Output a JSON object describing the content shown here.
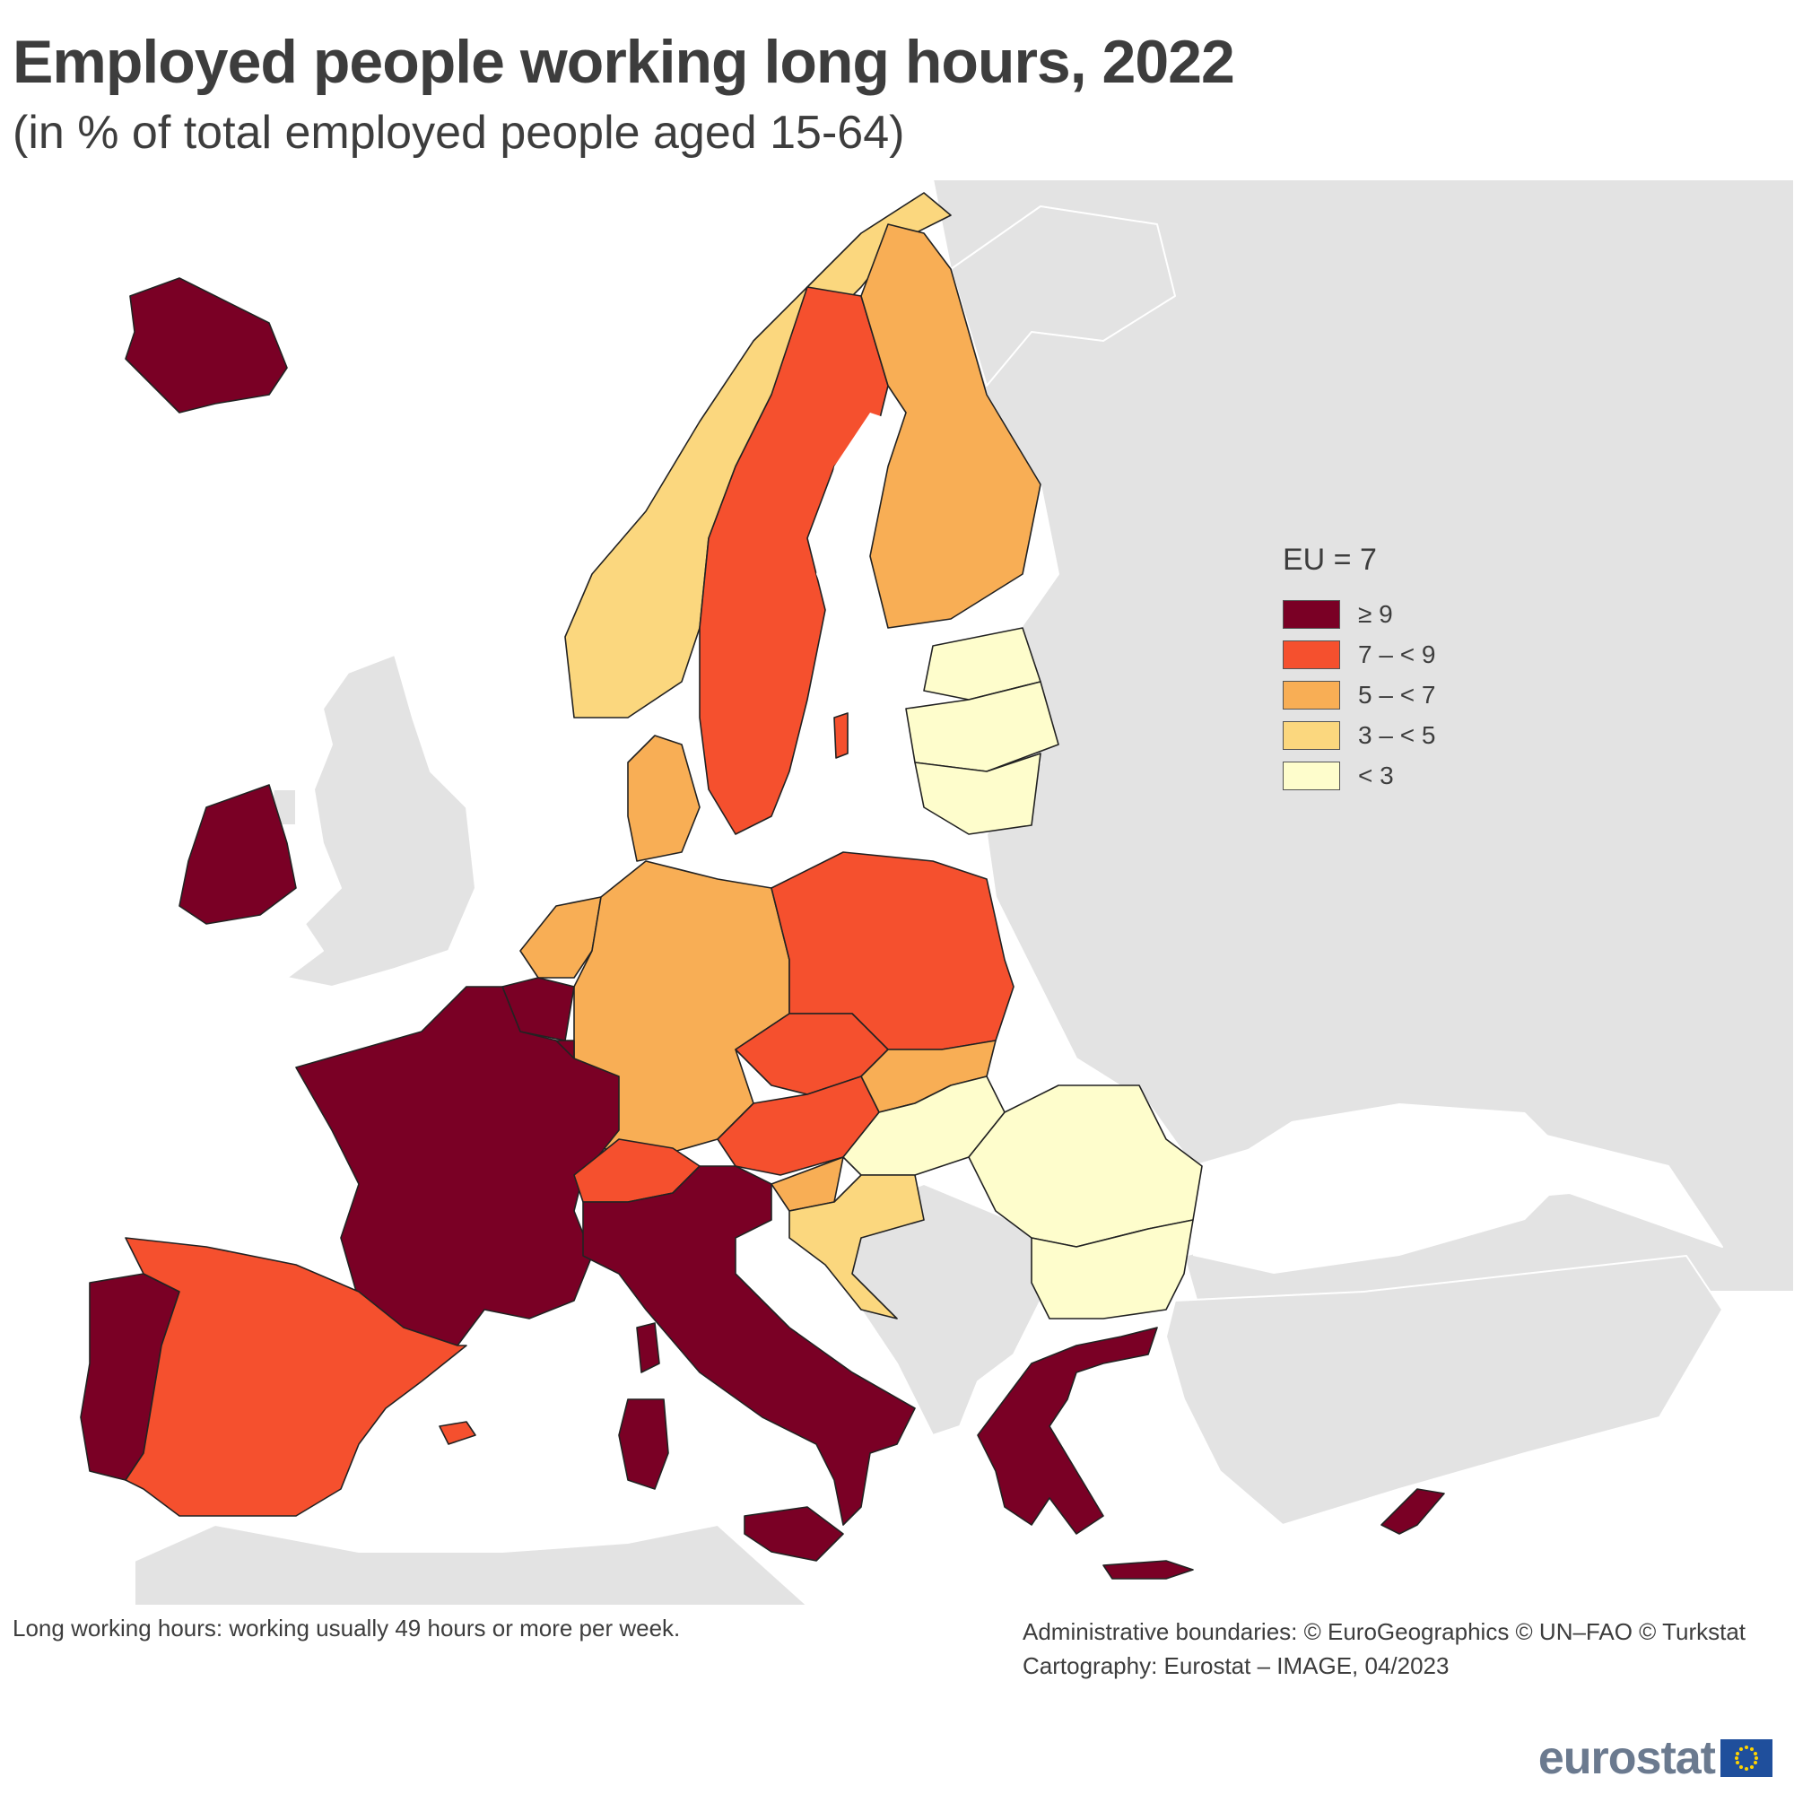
{
  "title": "Employed people working long hours, 2022",
  "subtitle": "(in % of total employed people aged 15-64)",
  "legend": {
    "title": "EU = 7",
    "classes": [
      {
        "label": "≥ 9",
        "color": "#7a0025"
      },
      {
        "label": "7 – < 9",
        "color": "#f5502e"
      },
      {
        "label": "5 – < 7",
        "color": "#f8ae55"
      },
      {
        "label": "3 – < 5",
        "color": "#fbd77e"
      },
      {
        "label": "< 3",
        "color": "#fefdcc"
      }
    ]
  },
  "colors": {
    "non_eu": "#e3e3e3",
    "sea": "#ffffff",
    "border": "#222222"
  },
  "footnote": "Long working hours: working usually 49 hours or more per week.",
  "credits": {
    "line1": "Administrative boundaries: © EuroGeographics © UN–FAO © Turkstat",
    "line2": "Cartography: Eurostat – IMAGE, 04/2023"
  },
  "logo": "eurostat",
  "map_classes": {
    "iceland": 0,
    "ireland": 0,
    "france": 0,
    "belgium": 0,
    "luxembourg": 0,
    "italy": 0,
    "portugal": 0,
    "greece": 0,
    "cyprus": 0,
    "corsica": 0,
    "sardinia": 0,
    "sicily": 0,
    "crete": 0,
    "spain": 1,
    "sweden": 1,
    "poland": 1,
    "czechia": 1,
    "austria": 1,
    "switzerland": 1,
    "balearic": 1,
    "gotland": 1,
    "finland": 2,
    "germany": 2,
    "netherlands": 2,
    "denmark": 2,
    "slovakia": 2,
    "slovenia": 2,
    "norway": 3,
    "croatia": 3,
    "estonia": 4,
    "latvia": 4,
    "lithuania": 4,
    "hungary": 4,
    "romania": 4,
    "bulgaria": 4
  }
}
